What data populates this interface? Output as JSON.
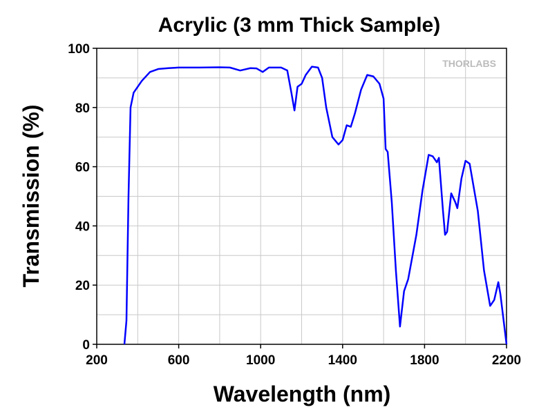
{
  "chart_data": {
    "type": "line",
    "title": "Acrylic (3 mm Thick Sample)",
    "x_label": "Wavelength (nm)",
    "y_label": "Transmission (%)",
    "watermark": "THORLABS",
    "xlim": [
      200,
      2200
    ],
    "xticks": [
      200,
      600,
      1000,
      1400,
      1800,
      2200
    ],
    "xgrid": [
      400,
      600,
      800,
      1000,
      1200,
      1400,
      1600,
      1800,
      2000
    ],
    "ylim": [
      0,
      100
    ],
    "yticks": [
      0,
      20,
      40,
      60,
      80,
      100
    ],
    "ygrid": [
      10,
      20,
      30,
      40,
      50,
      60,
      70,
      80,
      90
    ],
    "grid": true,
    "series": [
      {
        "name": "Transmission",
        "color": "#0000ff",
        "x": [
          335,
          345,
          355,
          365,
          380,
          420,
          460,
          500,
          550,
          600,
          700,
          800,
          850,
          900,
          950,
          980,
          1010,
          1040,
          1100,
          1130,
          1150,
          1165,
          1180,
          1200,
          1220,
          1250,
          1280,
          1300,
          1320,
          1350,
          1380,
          1400,
          1420,
          1440,
          1460,
          1490,
          1520,
          1550,
          1580,
          1600,
          1610,
          1620,
          1640,
          1660,
          1680,
          1700,
          1720,
          1760,
          1790,
          1820,
          1840,
          1860,
          1870,
          1890,
          1900,
          1910,
          1930,
          1950,
          1960,
          1980,
          2000,
          2020,
          2060,
          2090,
          2120,
          2140,
          2160,
          2170,
          2200
        ],
        "values": [
          0,
          8,
          50,
          80,
          85,
          89,
          92,
          93,
          93.3,
          93.5,
          93.5,
          93.6,
          93.5,
          92.5,
          93.3,
          93.2,
          92,
          93.5,
          93.5,
          92.5,
          85,
          79,
          87,
          88,
          91,
          93.8,
          93.5,
          90,
          80,
          70,
          67.5,
          69,
          74,
          73.5,
          78,
          86,
          91,
          90.5,
          88,
          83,
          66,
          65,
          48,
          25,
          6,
          18,
          22,
          37,
          52,
          64,
          63.5,
          61.5,
          63,
          45,
          37,
          38,
          51,
          48,
          46,
          56,
          62,
          61,
          45,
          25,
          13,
          15,
          21,
          17,
          0
        ]
      }
    ]
  }
}
